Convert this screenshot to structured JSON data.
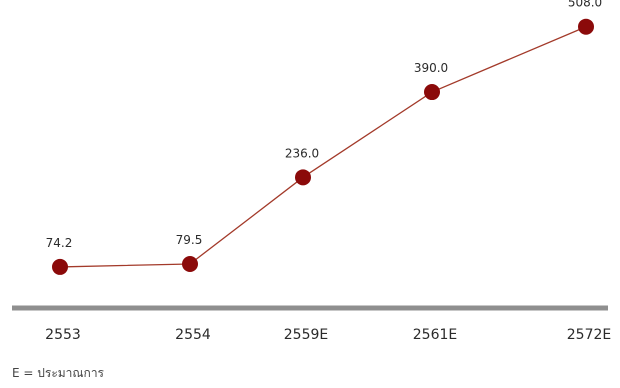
{
  "chart_data": {
    "type": "line",
    "categories": [
      "2553",
      "2554",
      "2559E",
      "2561E",
      "2572E"
    ],
    "values": [
      74.2,
      79.5,
      236.0,
      390.0,
      508.0
    ],
    "value_labels": [
      "74.2",
      "79.5",
      "236.0",
      "390.0",
      "508.0"
    ],
    "title": "",
    "xlabel": "",
    "ylabel": "",
    "ylim": [
      0,
      540
    ],
    "grid": false,
    "legend": "none",
    "colors": {
      "line": "#a33a2a",
      "marker": "#8b0a0a",
      "axis": "#8f8f8f",
      "text": "#2b2b2b"
    }
  },
  "footnote": "E = ประมาณการ"
}
